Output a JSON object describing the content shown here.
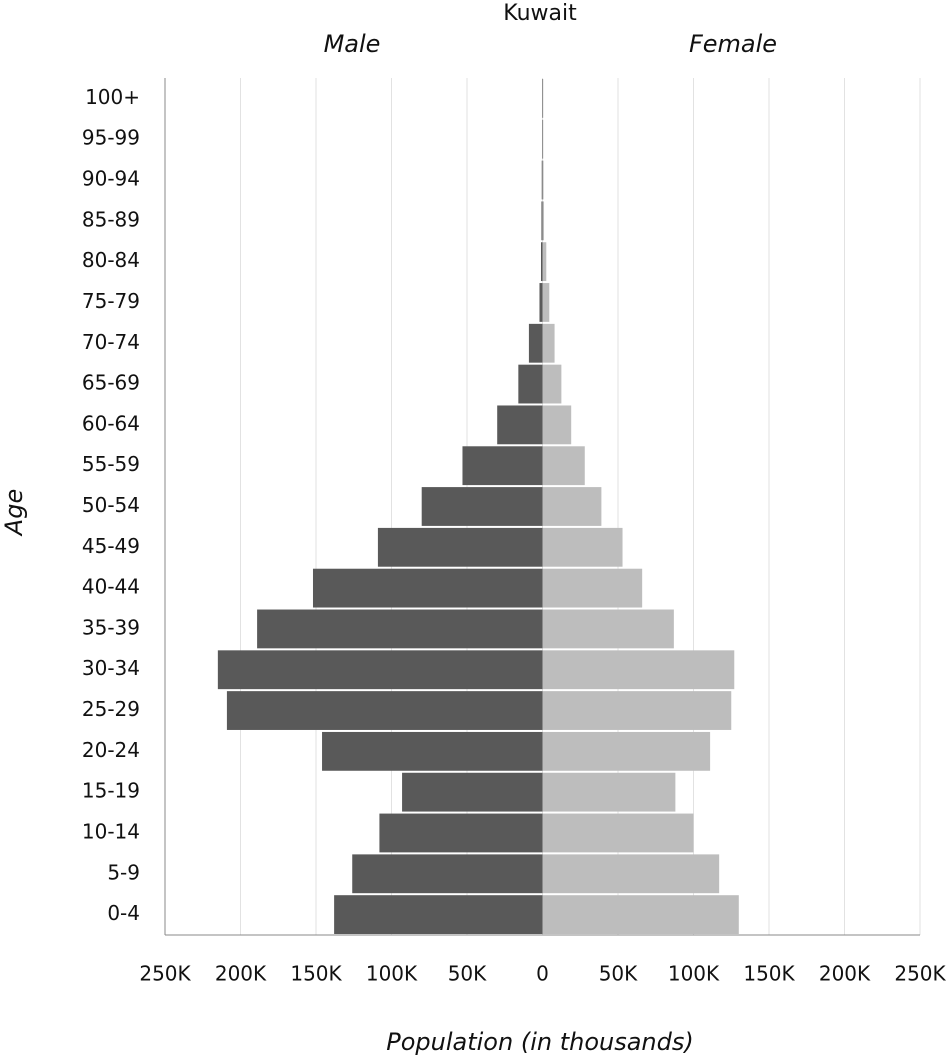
{
  "chart_data": {
    "type": "pyramid",
    "title": "Kuwait",
    "x_label": "Population (in thousands)",
    "y_label": "Age",
    "categories": [
      "100+",
      "95-99",
      "90-94",
      "85-89",
      "80-84",
      "75-79",
      "70-74",
      "65-69",
      "60-64",
      "55-59",
      "50-54",
      "45-49",
      "40-44",
      "35-39",
      "30-34",
      "25-29",
      "20-24",
      "15-19",
      "10-14",
      "5-9",
      "0-4"
    ],
    "series": [
      {
        "name": "Male",
        "color": "#595959",
        "values": [
          -0.3,
          -0.3,
          -0.5,
          -0.7,
          -1,
          -2,
          -9,
          -16,
          -30,
          -53,
          -80,
          -109,
          -152,
          -189,
          -215,
          -209,
          -146,
          -93,
          -108,
          -126,
          -138
        ]
      },
      {
        "name": "Female",
        "color": "#bdbdbd",
        "values": [
          0.5,
          0.5,
          0.7,
          1,
          2.5,
          4.5,
          8,
          12.5,
          19,
          28,
          39,
          53,
          66,
          87,
          127,
          125,
          111,
          88,
          100,
          117,
          130
        ]
      }
    ],
    "xlim": [
      -250,
      250
    ],
    "xticks": [
      {
        "value": -250,
        "label": "250K"
      },
      {
        "value": -200,
        "label": "200K"
      },
      {
        "value": -150,
        "label": "150K"
      },
      {
        "value": -100,
        "label": "100K"
      },
      {
        "value": -50,
        "label": "50K"
      },
      0,
      {
        "value": 50,
        "label": "50K"
      },
      {
        "value": 100,
        "label": "100K"
      },
      {
        "value": 150,
        "label": "150K"
      },
      {
        "value": 200,
        "label": "200K"
      },
      {
        "value": 250,
        "label": "250K"
      }
    ],
    "grid": true
  }
}
